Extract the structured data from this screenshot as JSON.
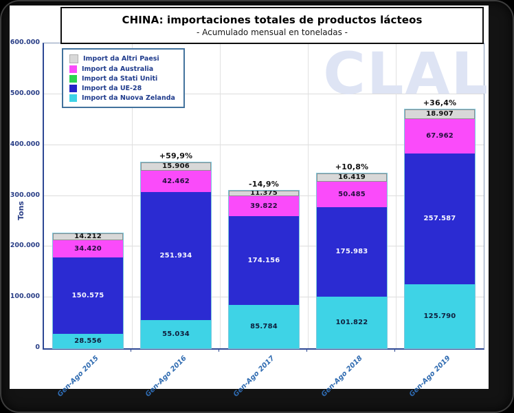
{
  "header": {
    "title": "CHINA: importaciones totales de productos lácteos",
    "subtitle": "- Acumulado mensual en toneladas -"
  },
  "watermark": "CLAL",
  "chart_data": {
    "type": "bar",
    "stacked": true,
    "title": "CHINA: importaciones totales de productos lácteos",
    "subtitle": "- Acumulado mensual en toneladas -",
    "ylabel": "Tons",
    "ylim": [
      0,
      600000
    ],
    "ygrid_interval": 100000,
    "grid": true,
    "yticks": [
      {
        "value": 0,
        "label": "0"
      },
      {
        "value": 100000,
        "label": "100.000"
      },
      {
        "value": 200000,
        "label": "200.000"
      },
      {
        "value": 300000,
        "label": "300.000"
      },
      {
        "value": 400000,
        "label": "400.000"
      },
      {
        "value": 500000,
        "label": "500.000"
      },
      {
        "value": 600000,
        "label": "600.000"
      }
    ],
    "categories": [
      "Gen-Ago 2015",
      "Gen-Ago 2016",
      "Gen-Ago 2017",
      "Gen-Ago 2018",
      "Gen-Ago 2019"
    ],
    "series": [
      {
        "name": "Import da Nuova Zelanda",
        "color": "#3ed3e6",
        "label_color": "#0f1f3d",
        "values": [
          28556,
          55034,
          85784,
          101822,
          125790
        ],
        "labels": [
          "28.556",
          "55.034",
          "85.784",
          "101.822",
          "125.790"
        ]
      },
      {
        "name": "Import da UE-28",
        "color": "#2b2bd2",
        "label_color": "#f4f4ff",
        "values": [
          150575,
          251934,
          174156,
          175983,
          257587
        ],
        "labels": [
          "150.575",
          "251.934",
          "174.156",
          "175.983",
          "257.587"
        ]
      },
      {
        "name": "Import da Australia",
        "color": "#fa4bfa",
        "label_color": "#23103d",
        "values": [
          34420,
          42462,
          39822,
          50485,
          67962
        ],
        "labels": [
          "34.420",
          "42.462",
          "39.822",
          "50.485",
          "67.962"
        ]
      },
      {
        "name": "Import da Altri Paesi",
        "color": "#d8d8d8",
        "border_color": "#8f8f8f",
        "label_color": "#111111",
        "values": [
          14212,
          15906,
          11375,
          16419,
          18907
        ],
        "labels": [
          "14.212",
          "15.906",
          "11.375",
          "16.419",
          "18.907"
        ]
      }
    ],
    "pct_annotations": [
      "",
      "+59,9%",
      "-14,9%",
      "+10,8%",
      "+36,4%"
    ],
    "legend": {
      "position": "top-left",
      "items": [
        {
          "label": "Import da Altri Paesi",
          "color": "#d8d8d8"
        },
        {
          "label": "Import da Australia",
          "color": "#fa4bfa"
        },
        {
          "label": "Import da Stati Uniti",
          "color": "#2bd34f"
        },
        {
          "label": "Import da UE-28",
          "color": "#2323c8"
        },
        {
          "label": "Import da Nuova Zelanda",
          "color": "#3ed3e6"
        }
      ]
    }
  },
  "colors": {
    "frame": "#131313",
    "panel": "#ffffff",
    "axis": "#2c4793",
    "tick_text": "#2a3f87",
    "xlabel_text": "#2e6ab0",
    "gridline": "#dcdcdc",
    "watermark": "#dee4f4",
    "legend_border": "#41719c",
    "bar_outline": "#7cc7db"
  }
}
